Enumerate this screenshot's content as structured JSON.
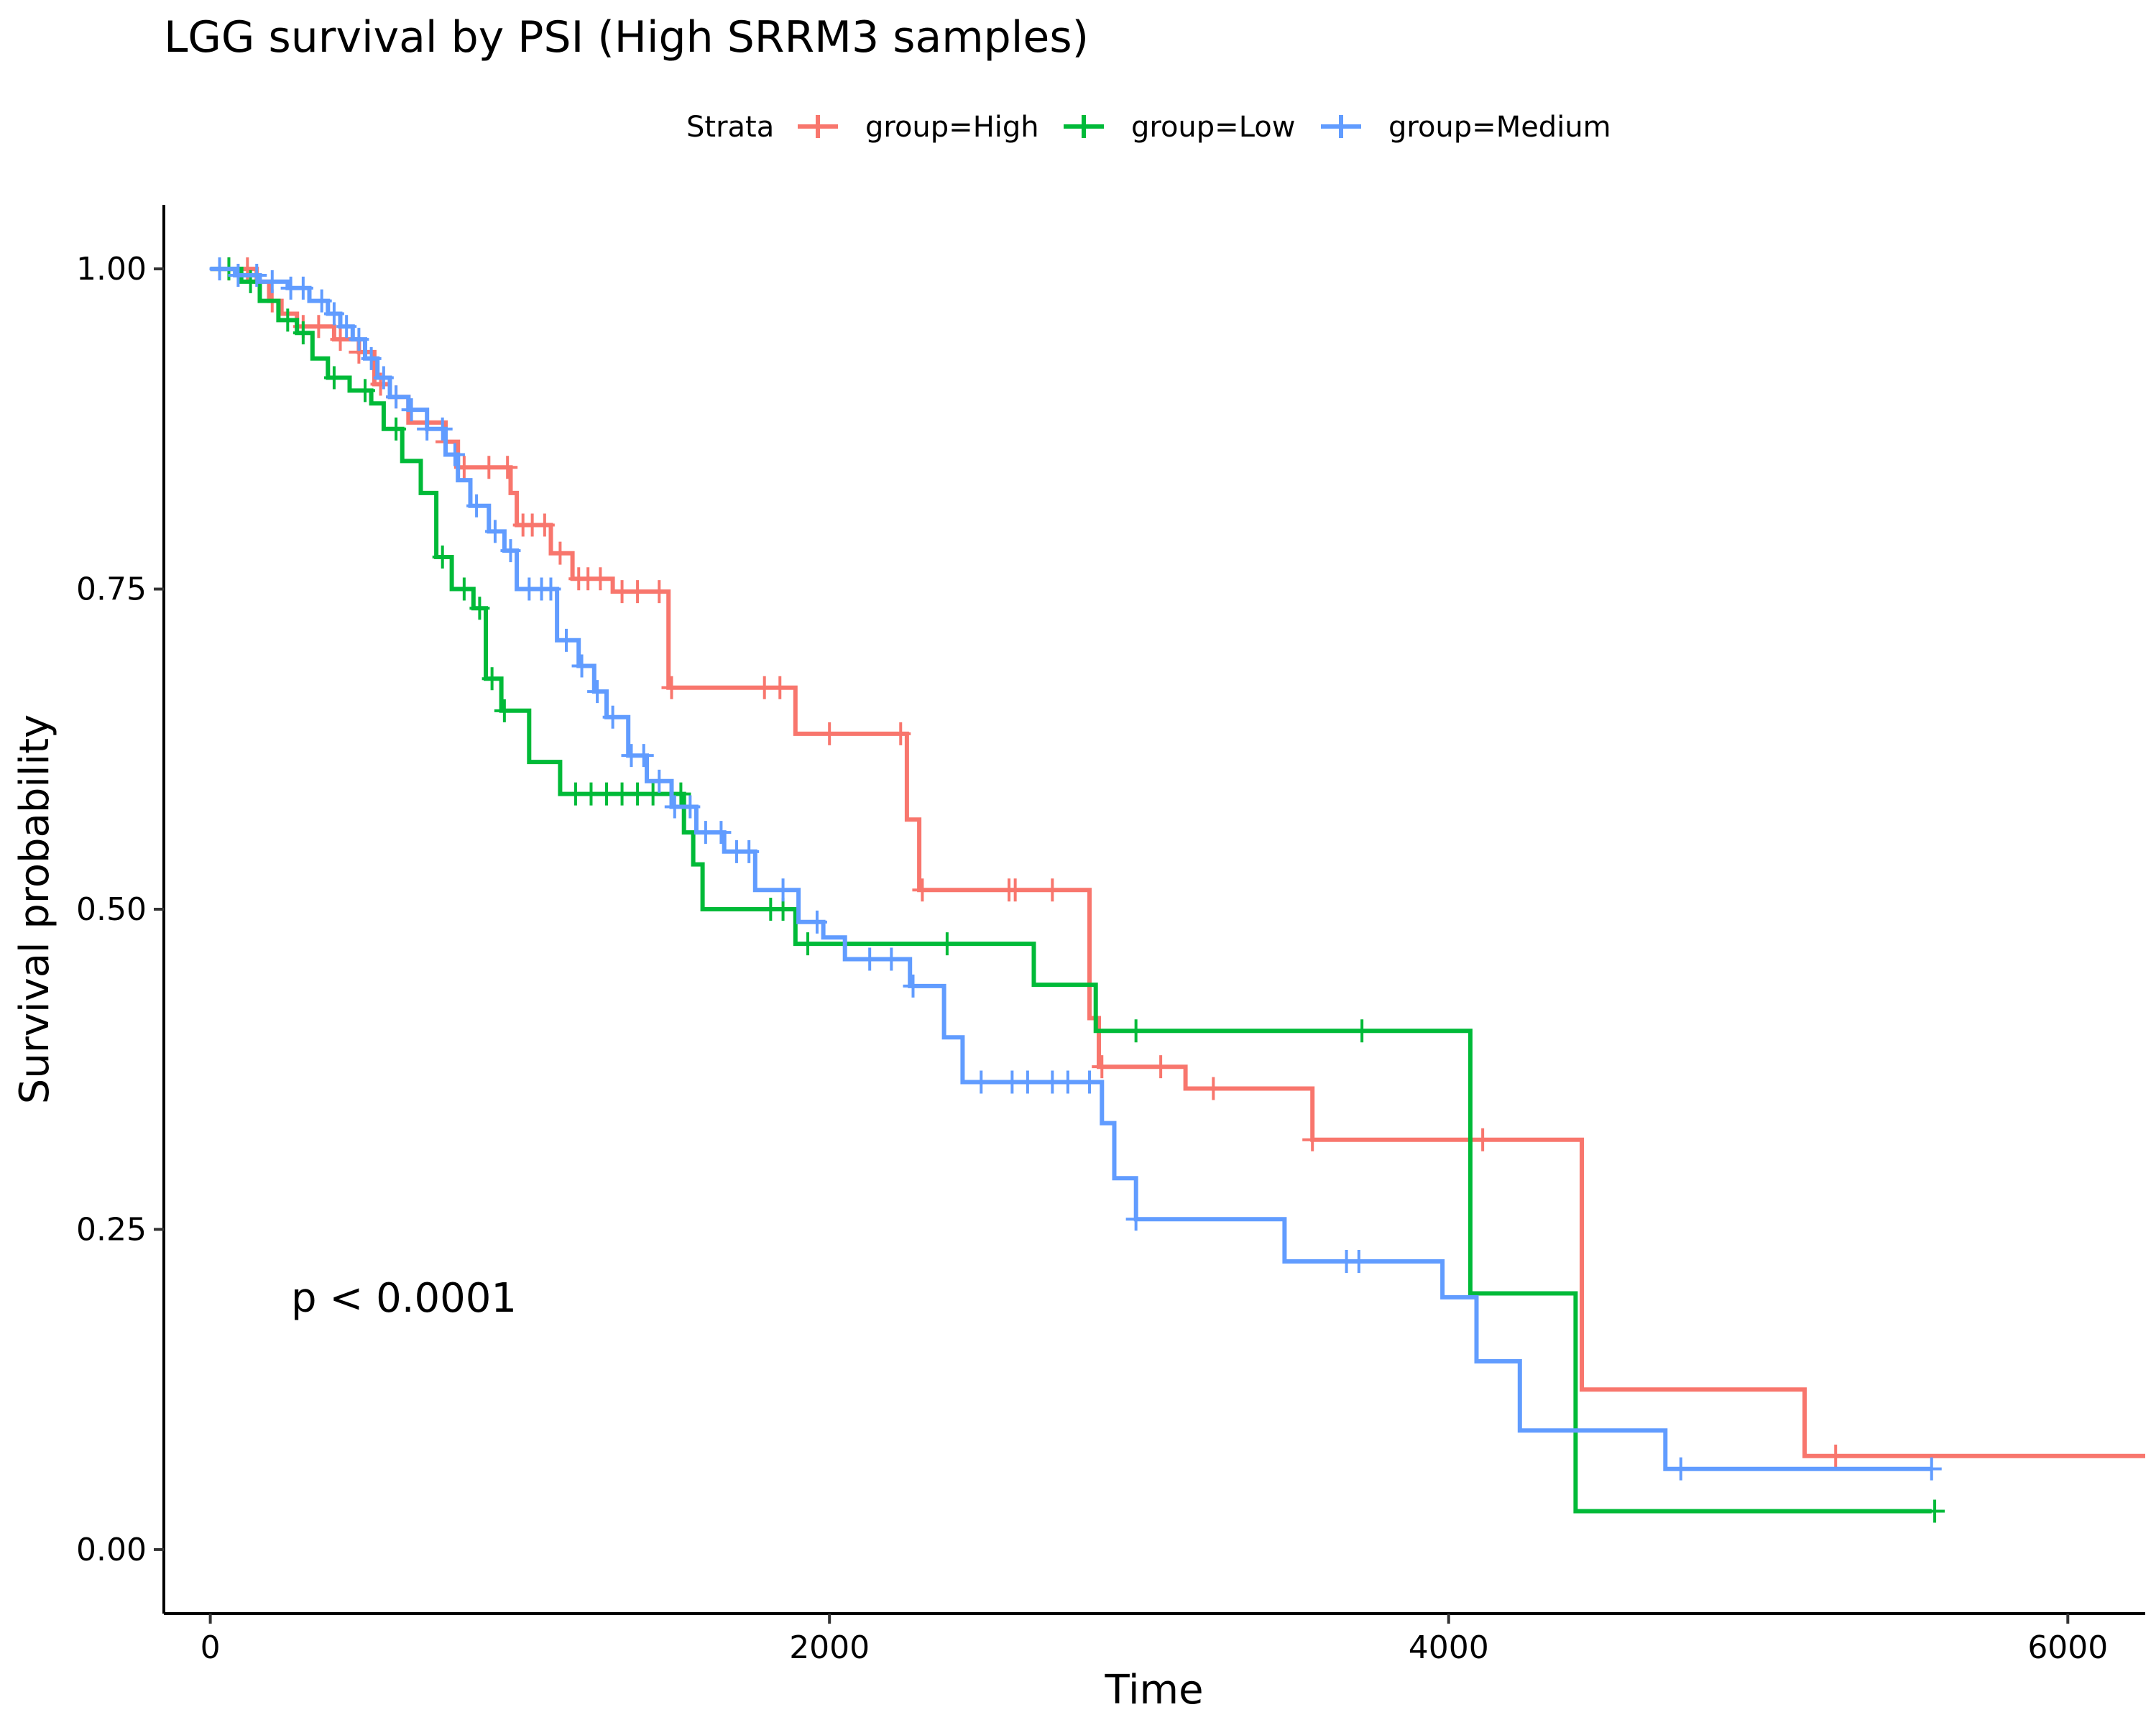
{
  "chart_data": {
    "type": "line",
    "title": "LGG survival by PSI (High SRRM3 samples)",
    "xlabel": "Time",
    "ylabel": "Survival probability",
    "xlim": [
      -150,
      6250
    ],
    "ylim": [
      -0.05,
      1.05
    ],
    "x_ticks": [
      0,
      2000,
      4000,
      6000
    ],
    "x_tick_labels": [
      "0",
      "2000",
      "4000",
      "6000"
    ],
    "y_ticks": [
      0,
      0.25,
      0.5,
      0.75,
      1
    ],
    "y_tick_labels": [
      "0.00",
      "0.25",
      "0.50",
      "0.75",
      "1.00"
    ],
    "grid": false,
    "legend": {
      "title": "Strata",
      "position": "top"
    },
    "annotation": "p < 0.0001",
    "series": [
      {
        "name": "group=High",
        "color": "#F8766D",
        "steps": [
          [
            0,
            1.0
          ],
          [
            150,
            0.99
          ],
          [
            190,
            0.975
          ],
          [
            230,
            0.965
          ],
          [
            280,
            0.955
          ],
          [
            400,
            0.945
          ],
          [
            480,
            0.935
          ],
          [
            530,
            0.91
          ],
          [
            580,
            0.9
          ],
          [
            640,
            0.88
          ],
          [
            760,
            0.865
          ],
          [
            800,
            0.845
          ],
          [
            970,
            0.825
          ],
          [
            990,
            0.8
          ],
          [
            1100,
            0.778
          ],
          [
            1170,
            0.758
          ],
          [
            1300,
            0.748
          ],
          [
            1480,
            0.673
          ],
          [
            1890,
            0.637
          ],
          [
            2250,
            0.57
          ],
          [
            2290,
            0.515
          ],
          [
            2840,
            0.415
          ],
          [
            2870,
            0.377
          ],
          [
            3150,
            0.36
          ],
          [
            3560,
            0.32
          ],
          [
            4430,
            0.125
          ],
          [
            5150,
            0.073
          ],
          [
            6250,
            0.073
          ]
        ],
        "censor_times": [
          60,
          120,
          200,
          300,
          350,
          420,
          480,
          550,
          600,
          700,
          760,
          820,
          900,
          960,
          1010,
          1040,
          1080,
          1130,
          1190,
          1220,
          1260,
          1330,
          1380,
          1450,
          1490,
          1790,
          1840,
          2000,
          2230,
          2300,
          2580,
          2600,
          2720,
          2880,
          3070,
          3240,
          3560,
          4110,
          5250
        ]
      },
      {
        "name": "group=Low",
        "color": "#00BA38",
        "steps": [
          [
            0,
            1.0
          ],
          [
            100,
            0.99
          ],
          [
            160,
            0.975
          ],
          [
            220,
            0.96
          ],
          [
            280,
            0.95
          ],
          [
            330,
            0.93
          ],
          [
            380,
            0.915
          ],
          [
            450,
            0.905
          ],
          [
            520,
            0.895
          ],
          [
            560,
            0.875
          ],
          [
            620,
            0.85
          ],
          [
            680,
            0.825
          ],
          [
            730,
            0.775
          ],
          [
            780,
            0.75
          ],
          [
            850,
            0.735
          ],
          [
            890,
            0.68
          ],
          [
            940,
            0.655
          ],
          [
            1030,
            0.615
          ],
          [
            1130,
            0.59
          ],
          [
            1530,
            0.56
          ],
          [
            1560,
            0.535
          ],
          [
            1590,
            0.5
          ],
          [
            1890,
            0.473
          ],
          [
            2660,
            0.441
          ],
          [
            2860,
            0.405
          ],
          [
            4070,
            0.2
          ],
          [
            4410,
            0.03
          ],
          [
            5560,
            0.03
          ]
        ],
        "censor_times": [
          60,
          130,
          250,
          300,
          400,
          500,
          600,
          750,
          820,
          870,
          910,
          950,
          1180,
          1230,
          1280,
          1330,
          1380,
          1430,
          1520,
          1810,
          1850,
          1930,
          2380,
          2990,
          3720,
          5570
        ]
      },
      {
        "name": "group=Medium",
        "color": "#619CFF",
        "steps": [
          [
            0,
            1.0
          ],
          [
            80,
            0.995
          ],
          [
            160,
            0.99
          ],
          [
            250,
            0.985
          ],
          [
            320,
            0.975
          ],
          [
            380,
            0.965
          ],
          [
            420,
            0.955
          ],
          [
            460,
            0.945
          ],
          [
            500,
            0.93
          ],
          [
            540,
            0.915
          ],
          [
            580,
            0.9
          ],
          [
            640,
            0.89
          ],
          [
            700,
            0.875
          ],
          [
            760,
            0.855
          ],
          [
            800,
            0.835
          ],
          [
            840,
            0.815
          ],
          [
            900,
            0.795
          ],
          [
            950,
            0.78
          ],
          [
            990,
            0.75
          ],
          [
            1120,
            0.71
          ],
          [
            1190,
            0.69
          ],
          [
            1240,
            0.67
          ],
          [
            1280,
            0.65
          ],
          [
            1350,
            0.62
          ],
          [
            1410,
            0.6
          ],
          [
            1490,
            0.58
          ],
          [
            1570,
            0.56
          ],
          [
            1660,
            0.545
          ],
          [
            1760,
            0.515
          ],
          [
            1900,
            0.49
          ],
          [
            1980,
            0.478
          ],
          [
            2050,
            0.461
          ],
          [
            2260,
            0.44
          ],
          [
            2370,
            0.4
          ],
          [
            2430,
            0.365
          ],
          [
            2880,
            0.333
          ],
          [
            2920,
            0.29
          ],
          [
            2990,
            0.258
          ],
          [
            3470,
            0.225
          ],
          [
            3980,
            0.197
          ],
          [
            4090,
            0.147
          ],
          [
            4230,
            0.093
          ],
          [
            4700,
            0.063
          ],
          [
            5560,
            0.063
          ]
        ],
        "censor_times": [
          30,
          90,
          150,
          200,
          260,
          300,
          360,
          400,
          440,
          480,
          520,
          560,
          600,
          650,
          700,
          750,
          790,
          860,
          920,
          970,
          1030,
          1070,
          1100,
          1150,
          1200,
          1250,
          1300,
          1360,
          1400,
          1450,
          1500,
          1550,
          1600,
          1650,
          1700,
          1740,
          1850,
          1960,
          2130,
          2200,
          2270,
          2490,
          2590,
          2640,
          2720,
          2770,
          2840,
          2990,
          3670,
          3710,
          4750,
          5560
        ]
      }
    ]
  }
}
